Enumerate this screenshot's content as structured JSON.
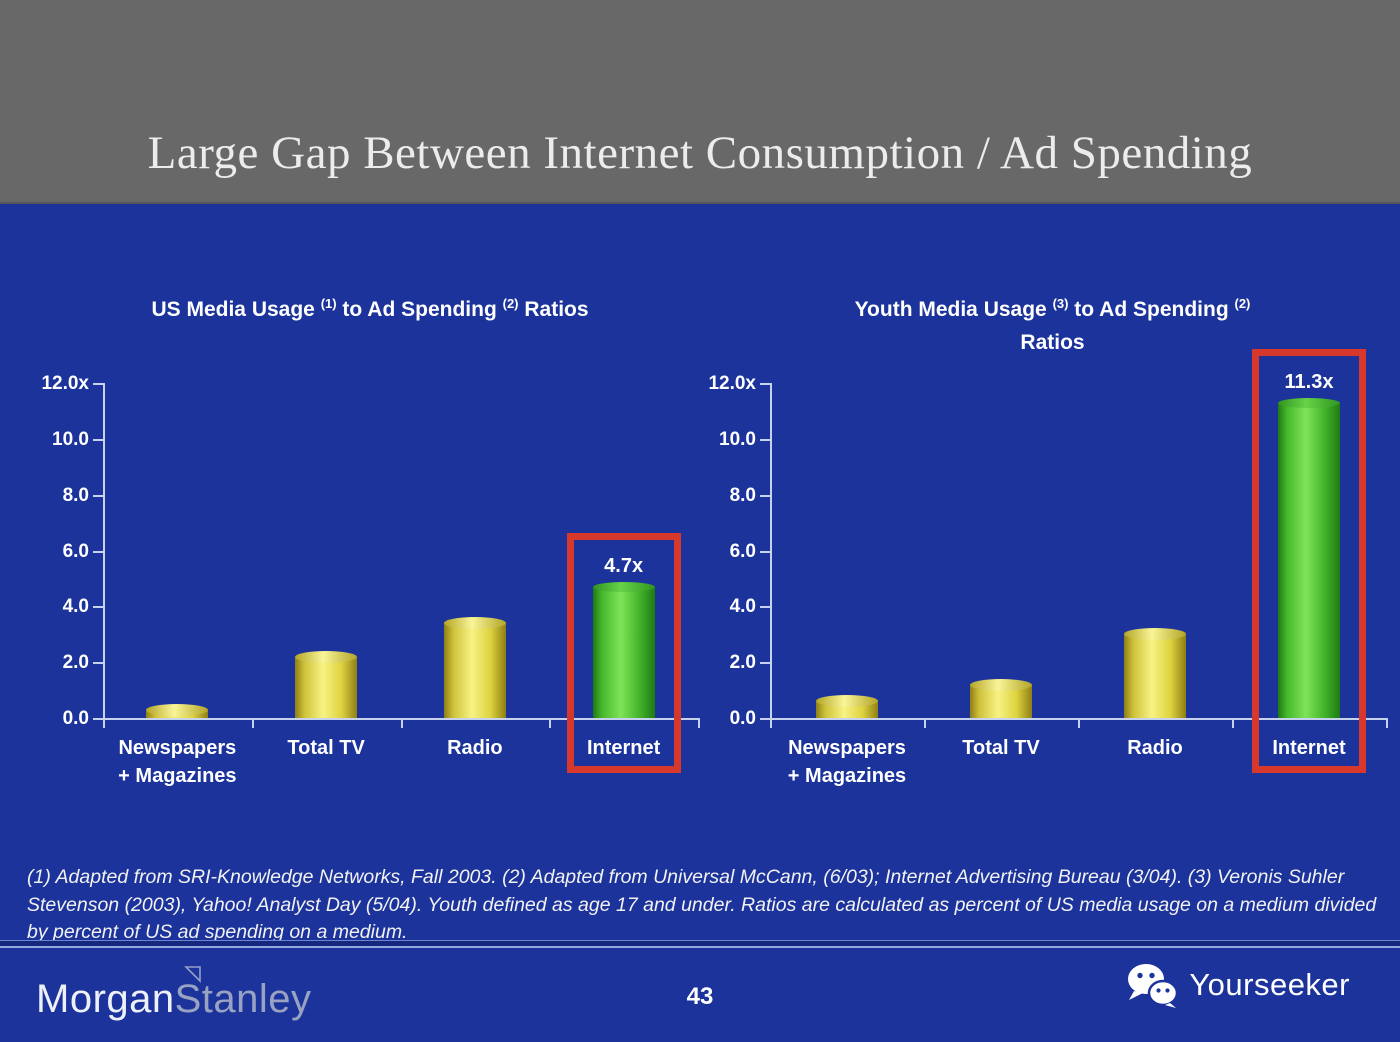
{
  "slide": {
    "title": "Large Gap Between Internet Consumption / Ad Spending",
    "page_number": "43"
  },
  "colors": {
    "header_bg": "#686868",
    "body_bg": "#1b339b",
    "bar_yellow": "#f7f284",
    "bar_green": "#7fe457",
    "highlight_red": "#d6382b",
    "axis": "#c7d2ee",
    "text": "#ffffff"
  },
  "chart_data": [
    {
      "type": "bar",
      "title_lines": [
        [
          {
            "text": "US Media Usage ",
            "sup": false
          },
          {
            "text": "(1)",
            "sup": true
          },
          {
            "text": " to Ad Spending ",
            "sup": false
          },
          {
            "text": "(2)",
            "sup": true
          },
          {
            "text": " Ratios",
            "sup": false
          }
        ]
      ],
      "categories": [
        [
          "Newspapers",
          "+ Magazines"
        ],
        [
          "Total TV"
        ],
        [
          "Radio"
        ],
        [
          "Internet"
        ]
      ],
      "values": [
        0.3,
        2.2,
        3.4,
        4.7
      ],
      "ylim": [
        0,
        12
      ],
      "yticks": [
        {
          "label": "12.0x",
          "value": 12
        },
        {
          "label": "10.0",
          "value": 10
        },
        {
          "label": "8.0",
          "value": 8
        },
        {
          "label": "6.0",
          "value": 6
        },
        {
          "label": "4.0",
          "value": 4
        },
        {
          "label": "2.0",
          "value": 2
        },
        {
          "label": "0.0",
          "value": 0
        }
      ],
      "highlight": {
        "index": 3,
        "label": "4.7x"
      },
      "grid": false,
      "legend": null
    },
    {
      "type": "bar",
      "title_lines": [
        [
          {
            "text": "Youth Media Usage ",
            "sup": false
          },
          {
            "text": "(3)",
            "sup": true
          },
          {
            "text": " to Ad Spending ",
            "sup": false
          },
          {
            "text": "(2)",
            "sup": true
          }
        ],
        [
          {
            "text": "Ratios",
            "sup": false
          }
        ]
      ],
      "categories": [
        [
          "Newspapers",
          "+ Magazines"
        ],
        [
          "Total TV"
        ],
        [
          "Radio"
        ],
        [
          "Internet"
        ]
      ],
      "values": [
        0.6,
        1.2,
        3.0,
        11.3
      ],
      "ylim": [
        0,
        12
      ],
      "yticks": [
        {
          "label": "12.0x",
          "value": 12
        },
        {
          "label": "10.0",
          "value": 10
        },
        {
          "label": "8.0",
          "value": 8
        },
        {
          "label": "6.0",
          "value": 6
        },
        {
          "label": "4.0",
          "value": 4
        },
        {
          "label": "2.0",
          "value": 2
        },
        {
          "label": "0.0",
          "value": 0
        }
      ],
      "highlight": {
        "index": 3,
        "label": "11.3x"
      },
      "grid": false,
      "legend": null
    }
  ],
  "footnote": "(1) Adapted from SRI-Knowledge Networks, Fall 2003.  (2) Adapted from Universal McCann, (6/03); Internet Advertising Bureau (3/04). (3) Veronis Suhler Stevenson (2003), Yahoo! Analyst Day (5/04).  Youth defined as age 17 and under.  Ratios are calculated as percent of US media usage on a medium divided by percent of US ad spending on a medium.",
  "footer": {
    "brand": {
      "part1": "Morgan",
      "part2": "Stanley"
    },
    "watermark": "Yourseeker"
  }
}
